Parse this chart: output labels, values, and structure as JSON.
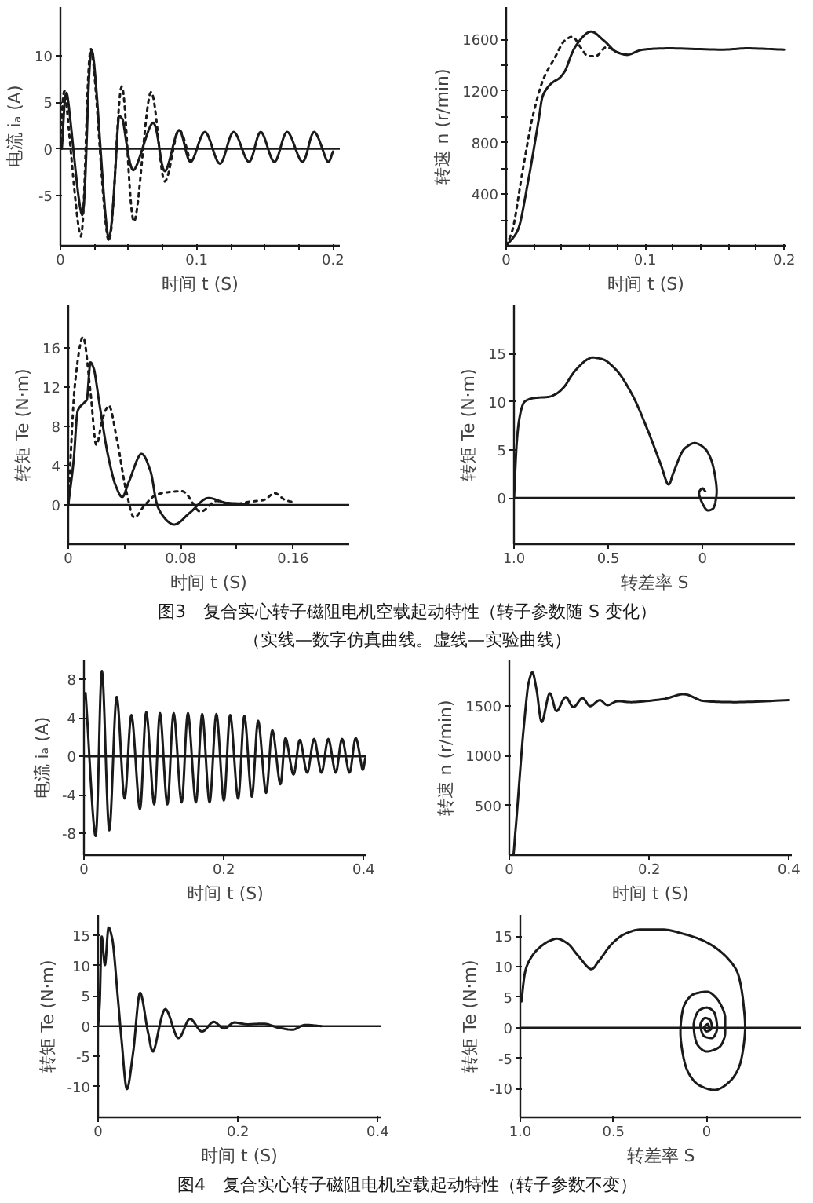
{
  "chart_data": [
    {
      "type": "line",
      "xlabel": "时间 t (S)",
      "ylabel": "电流 iₐ (A)",
      "xlim": [
        0,
        0.205
      ],
      "ylim": [
        -10.4,
        15.2
      ],
      "xticks": [
        0,
        {
          "value": 0.025,
          "label": null
        },
        {
          "value": 0.05,
          "label": null
        },
        {
          "value": 0.075,
          "label": null
        },
        0.1,
        {
          "value": 0.125,
          "label": null
        },
        {
          "value": 0.15,
          "label": null
        },
        {
          "value": 0.175,
          "label": null
        },
        0.2
      ],
      "yticks": [
        -5,
        0,
        5,
        10
      ],
      "ref_lines": [
        {
          "axis": "y",
          "value": 0
        }
      ],
      "series": [
        {
          "color": "#1a1a1a",
          "line_style": "solid",
          "x": [
            0.001,
            0.0045,
            0.016,
            0.023,
            0.0355,
            0.043,
            0.0455,
            0.0535,
            0.068,
            0.0766,
            0.087,
            0.0955,
            0.106,
            0.117,
            0.1271,
            0.1383,
            0.147,
            0.157,
            0.1664,
            0.1776,
            0.1862,
            0.1963,
            0.2
          ],
          "values": [
            0,
            6.0,
            -7.1,
            10.6,
            -9.6,
            3.5,
            3.2,
            -2.3,
            2.8,
            -2.4,
            2.0,
            -1.4,
            1.8,
            -1.6,
            1.8,
            -1.4,
            1.8,
            -1.4,
            1.8,
            -1.4,
            1.8,
            -1.4,
            -0.3
          ]
        },
        {
          "color": "#1a1a1a",
          "line_style": "dotted",
          "x": [
            0,
            0.003,
            0.015,
            0.0224,
            0.0355,
            0.045,
            0.054,
            0.0665,
            0.0766,
            0.087,
            0.0955
          ],
          "values": [
            0,
            6.2,
            -9.4,
            10.7,
            -9.9,
            6.7,
            -7.8,
            6.1,
            -3.5,
            2.0,
            -1.4
          ]
        }
      ]
    },
    {
      "type": "line",
      "xlabel": "时间 t (S)",
      "ylabel": "转速 n (r/min)",
      "xlim": [
        0,
        0.201
      ],
      "ylim": [
        0,
        1850
      ],
      "xticks": [
        0,
        {
          "value": 0.02,
          "label": null
        },
        {
          "value": 0.04,
          "label": null
        },
        {
          "value": 0.06,
          "label": null
        },
        {
          "value": 0.08,
          "label": null
        },
        0.1,
        {
          "value": 0.12,
          "label": null
        },
        {
          "value": 0.14,
          "label": null
        },
        {
          "value": 0.16,
          "label": null
        },
        {
          "value": 0.18,
          "label": null
        },
        0.2
      ],
      "yticks": [
        {
          "value": 200,
          "label": null
        },
        400,
        {
          "value": 600,
          "label": null
        },
        800,
        {
          "value": 1000,
          "label": null
        },
        1200,
        {
          "value": 1400,
          "label": null
        },
        1600
      ],
      "series": [
        {
          "color": "#1a1a1a",
          "line_style": "solid",
          "x": [
            0,
            0.0083,
            0.0158,
            0.0233,
            0.0263,
            0.0327,
            0.0383,
            0.0421,
            0.0496,
            0.0609,
            0.0703,
            0.0797,
            0.0872,
            0.0985,
            0.1173,
            0.1549,
            0.1737,
            0.2
          ],
          "values": [
            0,
            120,
            500,
            970,
            1160,
            1260,
            1300,
            1350,
            1540,
            1660,
            1590,
            1500,
            1480,
            1520,
            1530,
            1520,
            1530,
            1520
          ]
        },
        {
          "color": "#1a1a1a",
          "line_style": "dotted",
          "x": [
            0,
            0.0045,
            0.012,
            0.0195,
            0.0271,
            0.0346,
            0.0421,
            0.0477,
            0.0534,
            0.059,
            0.0646,
            0.0722,
            0.0797,
            0.0872
          ],
          "values": [
            0,
            120,
            590,
            1020,
            1300,
            1450,
            1590,
            1620,
            1540,
            1470,
            1470,
            1540,
            1500,
            1480
          ]
        }
      ]
    },
    {
      "type": "line",
      "xlabel": "时间 t (S)",
      "ylabel": "转矩 Te (N·m)",
      "xlim": [
        0,
        0.2
      ],
      "ylim": [
        -4,
        20.3
      ],
      "xticks": [
        0,
        {
          "value": 0.04,
          "label": null
        },
        0.08,
        {
          "value": 0.12,
          "label": null
        },
        0.16
      ],
      "yticks": [
        0,
        4,
        8,
        12,
        16
      ],
      "ref_lines": [
        {
          "axis": "y",
          "value": 0
        }
      ],
      "series": [
        {
          "color": "#1a1a1a",
          "line_style": "solid",
          "x": [
            0,
            0.0038,
            0.0068,
            0.0113,
            0.0132,
            0.0158,
            0.0181,
            0.0226,
            0.0282,
            0.0339,
            0.0384,
            0.0433,
            0.052,
            0.0584,
            0.064,
            0.0753,
            0.0866,
            0.0998,
            0.113,
            0.128
          ],
          "values": [
            0,
            4.5,
            9.6,
            10.4,
            10.7,
            14.5,
            13.9,
            9.9,
            5.1,
            1.9,
            0.8,
            2.4,
            5.2,
            3.5,
            -0.3,
            -2.0,
            -0.8,
            0.7,
            0.2,
            0.1
          ]
        },
        {
          "color": "#1a1a1a",
          "line_style": "dotted",
          "x": [
            0,
            0.0049,
            0.0105,
            0.0158,
            0.02,
            0.0245,
            0.029,
            0.0346,
            0.0414,
            0.0471,
            0.0546,
            0.064,
            0.0809,
            0.0941,
            0.1054,
            0.1167,
            0.128,
            0.1393,
            0.1468,
            0.1544,
            0.1619
          ],
          "values": [
            0,
            12.5,
            17.1,
            11.5,
            6.1,
            8.8,
            10.1,
            6.7,
            1.3,
            -1.3,
            0,
            1.1,
            1.4,
            -0.7,
            0.4,
            0,
            0.3,
            0.5,
            1.2,
            0.5,
            0.2
          ]
        }
      ]
    },
    {
      "type": "line",
      "xlabel": "转差率 S",
      "ylabel": "转矩 Te (N·m)",
      "xlim": [
        1.0,
        -0.49
      ],
      "ylim": [
        -4.8,
        20
      ],
      "xticks": [
        {
          "value": 1,
          "label": "1.0"
        },
        0.5,
        0
      ],
      "yticks": [
        0,
        5,
        10,
        15
      ],
      "ref_lines": [
        {
          "axis": "y",
          "value": 0
        }
      ],
      "series": [
        {
          "color": "#1a1a1a",
          "line_style": "solid",
          "x": [
            1.0,
            0.986,
            0.972,
            0.944,
            0.889,
            0.819,
            0.778,
            0.736,
            0.681,
            0.611,
            0.583,
            0.528,
            0.458,
            0.375,
            0.292,
            0.222,
            0.181,
            0.153,
            0.097,
            0.042,
            -0.014,
            -0.056,
            -0.075,
            -0.056,
            -0.028,
            0,
            0.019,
            0,
            -0.014
          ],
          "values": [
            0,
            5.6,
            8.2,
            10.0,
            10.4,
            10.5,
            10.8,
            11.5,
            13.1,
            14.4,
            14.6,
            14.4,
            13.3,
            10.8,
            7.1,
            3.5,
            1.4,
            2.7,
            5.1,
            5.7,
            5.1,
            3.3,
            0.7,
            -1.1,
            -1.3,
            -0.6,
            0.5,
            1.0,
            0.7
          ]
        }
      ],
      "annotations": [
        "图3　复合实心转子磁阻电机空载起动特性（转子参数随 S 变化）",
        "（实线—数字仿真曲线。虚线—实验曲线）"
      ]
    },
    {
      "type": "line",
      "xlabel": "时间 t (S)",
      "ylabel": "电流 iₐ (A)",
      "xlim": [
        0,
        0.404
      ],
      "ylim": [
        -10.3,
        10
      ],
      "xticks": [
        0,
        0.2,
        0.4
      ],
      "yticks": [
        -8,
        -4,
        0,
        4,
        8
      ],
      "ref_lines": [
        {
          "axis": "y",
          "value": 0
        }
      ],
      "series": [
        {
          "color": "#1a1a1a",
          "line_style": "solid",
          "x": [
            0.0023,
            0.0166,
            0.0257,
            0.0362,
            0.0468,
            0.0581,
            0.0679,
            0.08,
            0.0891,
            0.1004,
            0.1087,
            0.1192,
            0.1283,
            0.1396,
            0.1487,
            0.16,
            0.1691,
            0.1796,
            0.1894,
            0.2,
            0.2091,
            0.2204,
            0.2294,
            0.24,
            0.2491,
            0.2604,
            0.2694,
            0.2808,
            0.2883,
            0.2996,
            0.3087,
            0.3192,
            0.3291,
            0.3396,
            0.3494,
            0.36,
            0.3691,
            0.3796,
            0.3887,
            0.3985,
            0.4023
          ],
          "values": [
            6.6,
            -8.3,
            8.9,
            -7.7,
            6.2,
            -4.4,
            4.3,
            -5.5,
            4.6,
            -5.0,
            4.5,
            -5.0,
            4.5,
            -4.8,
            4.5,
            -4.8,
            4.4,
            -4.8,
            4.4,
            -4.6,
            4.3,
            -4.4,
            4.2,
            -4.2,
            3.7,
            -3.8,
            2.7,
            -2.9,
            1.9,
            -1.9,
            1.7,
            -1.7,
            1.8,
            -1.7,
            1.8,
            -1.7,
            1.8,
            -1.7,
            1.9,
            -1.4,
            -0.2
          ]
        }
      ]
    },
    {
      "type": "line",
      "xlabel": "时间 t (S)",
      "ylabel": "转速 n (r/min)",
      "xlim": [
        0,
        0.404
      ],
      "ylim": [
        0,
        1960
      ],
      "xticks": [
        0,
        0.2,
        0.4
      ],
      "yticks": [
        500,
        1000,
        1500
      ],
      "series": [
        {
          "color": "#1a1a1a",
          "line_style": "solid",
          "x": [
            0,
            0.0053,
            0.009,
            0.0203,
            0.0278,
            0.0331,
            0.0391,
            0.0466,
            0.0579,
            0.0677,
            0.0805,
            0.0917,
            0.1045,
            0.1158,
            0.1293,
            0.1406,
            0.1556,
            0.1744,
            0.2195,
            0.2496,
            0.2797,
            0.3248,
            0.4
          ],
          "values": [
            0,
            0,
            260,
            1260,
            1740,
            1840,
            1660,
            1340,
            1630,
            1450,
            1590,
            1490,
            1580,
            1500,
            1560,
            1510,
            1550,
            1540,
            1570,
            1620,
            1550,
            1540,
            1560
          ]
        }
      ]
    },
    {
      "type": "line",
      "xlabel": "时间 t (S)",
      "ylabel": "转矩 Te (N·m)",
      "xlim": [
        0,
        0.404
      ],
      "ylim": [
        -15.1,
        18.4
      ],
      "xticks": [
        0,
        0.2,
        0.4
      ],
      "yticks": [
        -10,
        -5,
        0,
        5,
        10,
        15
      ],
      "ref_lines": [
        {
          "axis": "y",
          "value": 0
        }
      ],
      "series": [
        {
          "color": "#1a1a1a",
          "line_style": "solid",
          "x": [
            0,
            0.0023,
            0.0053,
            0.0098,
            0.015,
            0.0203,
            0.0278,
            0.0338,
            0.0413,
            0.0503,
            0.0601,
            0.0713,
            0.0788,
            0.0961,
            0.1149,
            0.1314,
            0.1486,
            0.1652,
            0.1802,
            0.1952,
            0.214,
            0.2365,
            0.259,
            0.2778,
            0.2965,
            0.3191
          ],
          "values": [
            0,
            3.7,
            14.8,
            10.1,
            16.3,
            14.4,
            5.3,
            -2.6,
            -10.4,
            -4.2,
            5.5,
            -1.0,
            -4.2,
            2.8,
            -2.0,
            1.2,
            -0.9,
            0.7,
            -0.4,
            0.6,
            0.3,
            0.4,
            -0.3,
            -0.6,
            0.2,
            0
          ]
        }
      ]
    },
    {
      "type": "line",
      "xlabel": "转差率 S",
      "ylabel": "转矩 Te (N·m)",
      "xlim": [
        1.0,
        -0.507
      ],
      "ylim": [
        -14.7,
        18.5
      ],
      "xticks": [
        {
          "value": 1,
          "label": "1.0"
        },
        0.5,
        0
      ],
      "yticks": [
        -10,
        -5,
        0,
        5,
        10,
        15
      ],
      "ref_lines": [
        {
          "axis": "y",
          "value": 0
        }
      ],
      "series": [
        {
          "color": "#1a1a1a",
          "line_style": "solid",
          "x": [
            0.994,
            0.972,
            0.915,
            0.845,
            0.803,
            0.746,
            0.69,
            0.62,
            0.577,
            0.507,
            0.437,
            0.352,
            0.239,
            0.127,
            0.014,
            -0.099,
            -0.169,
            -0.197,
            -0.206,
            -0.183,
            -0.127,
            -0.042,
            0.042,
            0.113,
            0.141,
            0.127,
            0.07,
            0,
            -0.056,
            -0.099,
            -0.099,
            -0.07,
            0,
            0.056,
            0.07,
            0.042,
            0,
            -0.042,
            -0.056,
            -0.028,
            0.014,
            0.034,
            0.008,
            -0.02,
            -0.028,
            0,
            0.014,
            -0.006,
            -0.014
          ],
          "values": [
            4.3,
            9.4,
            12.6,
            14.2,
            14.6,
            13.8,
            11.8,
            9.6,
            11.0,
            13.8,
            15.4,
            16.1,
            16.1,
            15.4,
            14.2,
            11.8,
            8.7,
            3.9,
            0,
            -5.5,
            -8.7,
            -10.2,
            -9.4,
            -6.3,
            -0.8,
            3.1,
            5.5,
            5.9,
            4.7,
            1.6,
            -0.8,
            -3.1,
            -3.9,
            -2.4,
            0.4,
            2.8,
            3.3,
            2.4,
            0,
            -1.7,
            -1.4,
            0.4,
            1.6,
            1.2,
            0,
            -0.6,
            0,
            0.6,
            0
          ]
        }
      ],
      "annotations": [
        "图4　复合实心转子磁阻电机空载起动特性（转子参数不变）"
      ]
    }
  ]
}
